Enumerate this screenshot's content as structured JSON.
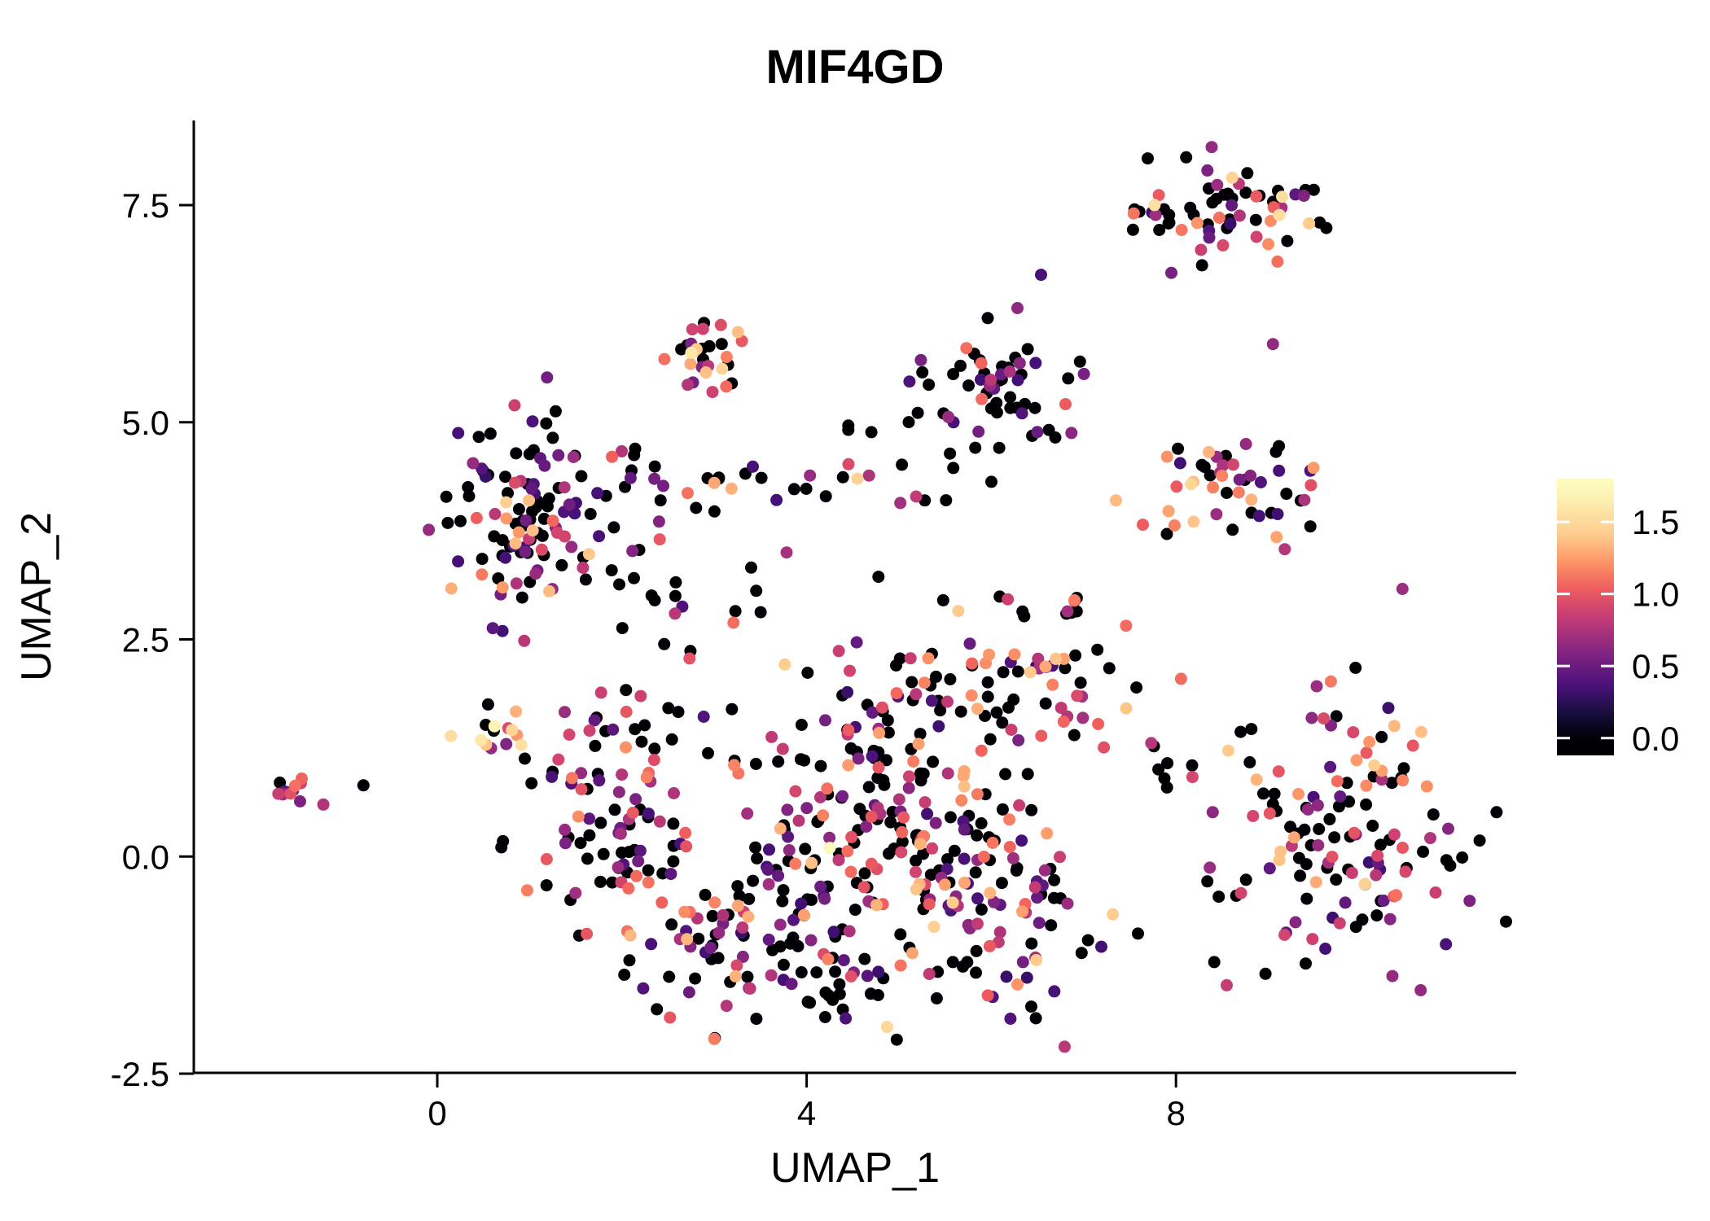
{
  "chart_data": {
    "type": "scatter",
    "title": "MIF4GD",
    "xlabel": "UMAP_1",
    "ylabel": "UMAP_2",
    "xlim": [
      -2.64,
      11.68
    ],
    "ylim": [
      -2.47,
      8.47
    ],
    "x_ticks": [
      0,
      4,
      8
    ],
    "x_tick_labels": [
      "0",
      "4",
      "8"
    ],
    "y_ticks": [
      -2.5,
      0.0,
      2.5,
      5.0,
      7.5
    ],
    "y_tick_labels": [
      "-2.5",
      "0.0",
      "2.5",
      "5.0",
      "7.5"
    ],
    "grid": false,
    "legend_position": "right",
    "point_radius": 7.5,
    "seed": 1377421,
    "colorbar": {
      "labels": [
        "1.5",
        "1.0",
        "0.5",
        "0.0"
      ],
      "values": [
        1.5,
        1.0,
        0.5,
        0.0
      ],
      "bar_vmin": -0.12,
      "bar_vmax": 1.8,
      "cmap_vmax": 1.75,
      "tick_color": "#ffffff"
    },
    "colormap_name": "magma",
    "colormap": [
      {
        "t": 0.0,
        "color": "#000004"
      },
      {
        "t": 0.1,
        "color": "#180f3e"
      },
      {
        "t": 0.2,
        "color": "#451077"
      },
      {
        "t": 0.3,
        "color": "#721f81"
      },
      {
        "t": 0.4,
        "color": "#9f2f7f"
      },
      {
        "t": 0.5,
        "color": "#cd4071"
      },
      {
        "t": 0.6,
        "color": "#f1605d"
      },
      {
        "t": 0.7,
        "color": "#fd9567"
      },
      {
        "t": 0.8,
        "color": "#feca8d"
      },
      {
        "t": 0.9,
        "color": "#fde4a6"
      },
      {
        "t": 1.0,
        "color": "#fcfdbf"
      }
    ],
    "axis_color": "#000000",
    "clusters": [
      {
        "name": "far-left-blob",
        "cx": -1.55,
        "cy": 0.7,
        "sx": 0.16,
        "sy": 0.09,
        "n": 11,
        "p0": 0.18,
        "vlo": 0.4,
        "vhi": 1.2,
        "bias": 1.0
      },
      {
        "name": "upper-left",
        "cx": 1.05,
        "cy": 3.95,
        "sx": 0.42,
        "sy": 0.52,
        "n": 115,
        "p0": 0.45,
        "vlo": 0.3,
        "vhi": 1.45,
        "bias": 1.6
      },
      {
        "name": "left-small",
        "cx": 0.55,
        "cy": 1.35,
        "sx": 0.22,
        "sy": 0.14,
        "n": 13,
        "p0": 0.2,
        "vlo": 0.4,
        "vhi": 1.6,
        "bias": 0.9
      },
      {
        "name": "top-middle",
        "cx": 2.95,
        "cy": 5.75,
        "sx": 0.28,
        "sy": 0.3,
        "n": 28,
        "p0": 0.45,
        "vlo": 0.4,
        "vhi": 1.5,
        "bias": 0.8
      },
      {
        "name": "top-right",
        "cx": 8.55,
        "cy": 7.45,
        "sx": 0.52,
        "sy": 0.28,
        "n": 62,
        "p0": 0.5,
        "vlo": 0.3,
        "vhi": 1.55,
        "bias": 1.4
      },
      {
        "name": "right-middle",
        "cx": 8.6,
        "cy": 4.3,
        "sx": 0.42,
        "sy": 0.35,
        "n": 48,
        "p0": 0.35,
        "vlo": 0.3,
        "vhi": 1.5,
        "bias": 1.1
      },
      {
        "name": "upper-center-black",
        "cx": 6.05,
        "cy": 5.35,
        "sx": 0.45,
        "sy": 0.4,
        "n": 60,
        "p0": 0.68,
        "vlo": 0.3,
        "vhi": 1.1,
        "bias": 1.4
      },
      {
        "name": "upper-sparse",
        "cx": 4.5,
        "cy": 5.1,
        "sx": 0.3,
        "sy": 0.12,
        "n": 4,
        "p0": 1.0,
        "vlo": 0.3,
        "vhi": 0.8,
        "bias": 1.0
      },
      {
        "name": "center-upper-scatter",
        "cx": 2.5,
        "cy": 2.9,
        "sx": 0.55,
        "sy": 0.5,
        "n": 26,
        "p0": 0.55,
        "vlo": 0.3,
        "vhi": 1.3,
        "bias": 1.2
      },
      {
        "name": "band-left",
        "cx": 3.1,
        "cy": 4.35,
        "sx": 0.6,
        "sy": 0.16,
        "n": 18,
        "p0": 0.5,
        "vlo": 0.3,
        "vhi": 1.4,
        "bias": 1.0
      },
      {
        "name": "band-right",
        "cx": 4.7,
        "cy": 4.3,
        "sx": 0.5,
        "sy": 0.15,
        "n": 12,
        "p0": 0.4,
        "vlo": 0.4,
        "vhi": 1.45,
        "bias": 0.9
      },
      {
        "name": "left-arm",
        "cx": 1.95,
        "cy": 0.6,
        "sx": 0.45,
        "sy": 0.85,
        "n": 85,
        "p0": 0.45,
        "vlo": 0.3,
        "vhi": 1.3,
        "bias": 1.3
      },
      {
        "name": "bottom-left",
        "cx": 3.3,
        "cy": -0.75,
        "sx": 0.75,
        "sy": 0.6,
        "n": 95,
        "p0": 0.5,
        "vlo": 0.3,
        "vhi": 1.35,
        "bias": 1.2
      },
      {
        "name": "bottom-arc",
        "cx": 4.4,
        "cy": -1.55,
        "sx": 0.85,
        "sy": 0.3,
        "n": 35,
        "p0": 0.55,
        "vlo": 0.3,
        "vhi": 1.2,
        "bias": 1.2
      },
      {
        "name": "center-core",
        "cx": 4.9,
        "cy": 0.35,
        "sx": 0.85,
        "sy": 0.85,
        "n": 150,
        "p0": 0.42,
        "vlo": 0.3,
        "vhi": 1.5,
        "bias": 1.15
      },
      {
        "name": "center-right",
        "cx": 6.1,
        "cy": -0.4,
        "sx": 0.6,
        "sy": 0.8,
        "n": 85,
        "p0": 0.5,
        "vlo": 0.3,
        "vhi": 1.45,
        "bias": 1.2
      },
      {
        "name": "center-up",
        "cx": 5.4,
        "cy": 1.7,
        "sx": 0.8,
        "sy": 0.55,
        "n": 65,
        "p0": 0.45,
        "vlo": 0.3,
        "vhi": 1.5,
        "bias": 1.1
      },
      {
        "name": "center-upper-right",
        "cx": 6.75,
        "cy": 2.2,
        "sx": 0.45,
        "sy": 0.55,
        "n": 35,
        "p0": 0.45,
        "vlo": 0.3,
        "vhi": 1.45,
        "bias": 1.0
      },
      {
        "name": "gap-right",
        "cx": 7.8,
        "cy": 1.0,
        "sx": 0.35,
        "sy": 0.45,
        "n": 10,
        "p0": 0.6,
        "vlo": 0.4,
        "vhi": 1.2,
        "bias": 1.0
      },
      {
        "name": "right-large",
        "cx": 9.85,
        "cy": 0.35,
        "sx": 0.7,
        "sy": 0.85,
        "n": 135,
        "p0": 0.42,
        "vlo": 0.3,
        "vhi": 1.5,
        "bias": 1.1
      }
    ],
    "extra_points": [
      {
        "x": -0.8,
        "y": 0.82,
        "v": 0.0
      },
      {
        "x": 7.55,
        "y": 7.45,
        "v": 0.0
      },
      {
        "x": 9.0,
        "y": 7.05,
        "v": 1.2
      },
      {
        "x": 9.1,
        "y": 6.85,
        "v": 1.1
      },
      {
        "x": 7.95,
        "y": 6.72,
        "v": 0.55
      },
      {
        "x": 9.05,
        "y": 5.9,
        "v": 0.65
      },
      {
        "x": 7.35,
        "y": 4.1,
        "v": 1.35
      },
      {
        "x": 4.25,
        "y": 0.1,
        "v": 1.72
      },
      {
        "x": 0.62,
        "y": 1.5,
        "v": 1.68
      },
      {
        "x": 2.75,
        "y": 5.8,
        "v": 1.6
      },
      {
        "x": 4.55,
        "y": 4.35,
        "v": 1.45
      },
      {
        "x": 6.9,
        "y": 2.95,
        "v": 1.15
      }
    ]
  }
}
